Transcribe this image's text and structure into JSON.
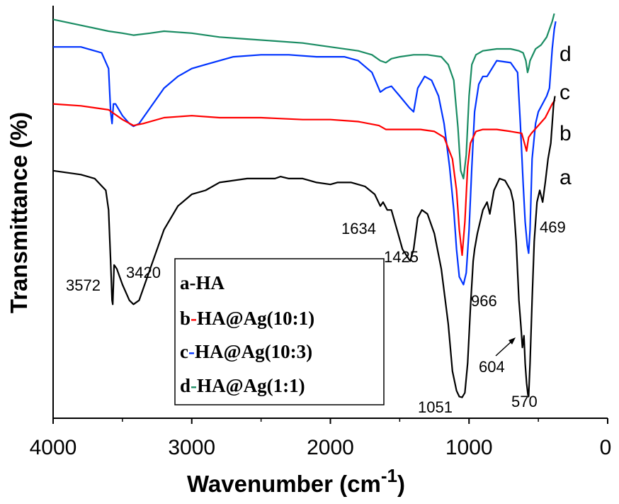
{
  "chart_data": {
    "type": "line",
    "xlabel": "Wavenumber (cm",
    "xlabel_superscript": "-1",
    "xlabel_suffix": ")",
    "ylabel": "Transmittance (%)",
    "xlim": [
      4000,
      0
    ],
    "x_ticks": [
      "4000",
      "3000",
      "2000",
      "1000",
      "0"
    ],
    "x_tick_values": [
      4000,
      3000,
      2000,
      1000,
      0
    ],
    "y_ticks_shown": false,
    "grid": false,
    "legend_position": "bottom-center",
    "series": [
      {
        "name": "a-HA",
        "curve_label": "a",
        "legend_prefix": "a",
        "legend_text": "-HA",
        "color": "#000000",
        "points": [
          [
            4000,
            63
          ],
          [
            3800,
            62
          ],
          [
            3700,
            61
          ],
          [
            3620,
            58
          ],
          [
            3600,
            53
          ],
          [
            3585,
            40
          ],
          [
            3575,
            30
          ],
          [
            3570,
            29
          ],
          [
            3560,
            39
          ],
          [
            3540,
            38
          ],
          [
            3500,
            34
          ],
          [
            3450,
            30
          ],
          [
            3420,
            29
          ],
          [
            3380,
            30
          ],
          [
            3300,
            38
          ],
          [
            3200,
            48
          ],
          [
            3100,
            54
          ],
          [
            3000,
            57
          ],
          [
            2900,
            58
          ],
          [
            2800,
            60
          ],
          [
            2600,
            61
          ],
          [
            2400,
            61
          ],
          [
            2360,
            61.5
          ],
          [
            2300,
            61
          ],
          [
            2200,
            61
          ],
          [
            2100,
            60
          ],
          [
            2000,
            59.5
          ],
          [
            1950,
            60
          ],
          [
            1850,
            60
          ],
          [
            1750,
            59
          ],
          [
            1680,
            57
          ],
          [
            1640,
            54
          ],
          [
            1620,
            55
          ],
          [
            1590,
            53
          ],
          [
            1560,
            53
          ],
          [
            1520,
            48
          ],
          [
            1480,
            43
          ],
          [
            1425,
            40
          ],
          [
            1400,
            43
          ],
          [
            1370,
            51
          ],
          [
            1340,
            53
          ],
          [
            1300,
            52
          ],
          [
            1250,
            47
          ],
          [
            1200,
            38
          ],
          [
            1150,
            24
          ],
          [
            1120,
            12
          ],
          [
            1090,
            7
          ],
          [
            1070,
            5.5
          ],
          [
            1050,
            5.3
          ],
          [
            1030,
            6.5
          ],
          [
            1010,
            14
          ],
          [
            990,
            28
          ],
          [
            970,
            40
          ],
          [
            960,
            43
          ],
          [
            940,
            47
          ],
          [
            900,
            53
          ],
          [
            870,
            55
          ],
          [
            850,
            52
          ],
          [
            820,
            58
          ],
          [
            780,
            61
          ],
          [
            740,
            60.5
          ],
          [
            700,
            58
          ],
          [
            680,
            55
          ],
          [
            660,
            45
          ],
          [
            640,
            30
          ],
          [
            625,
            23
          ],
          [
            615,
            18
          ],
          [
            604,
            21
          ],
          [
            595,
            14
          ],
          [
            585,
            9
          ],
          [
            575,
            6
          ],
          [
            570,
            5.5
          ],
          [
            560,
            14
          ],
          [
            545,
            30
          ],
          [
            530,
            45
          ],
          [
            510,
            55
          ],
          [
            490,
            58
          ],
          [
            469,
            55
          ],
          [
            450,
            60
          ],
          [
            430,
            66
          ],
          [
            410,
            70
          ],
          [
            400,
            75
          ],
          [
            390,
            80
          ],
          [
            380,
            82
          ]
        ]
      },
      {
        "name": "b-HA@Ag(10:1)",
        "curve_label": "b",
        "legend_prefix": "b",
        "legend_text": "-HA@Ag(10:1)",
        "color": "#ff0000",
        "points": [
          [
            4000,
            80
          ],
          [
            3800,
            79.5
          ],
          [
            3600,
            78.5
          ],
          [
            3500,
            76
          ],
          [
            3420,
            74.5
          ],
          [
            3350,
            75
          ],
          [
            3200,
            76.5
          ],
          [
            3000,
            77
          ],
          [
            2800,
            76.5
          ],
          [
            2500,
            76.5
          ],
          [
            2200,
            76
          ],
          [
            2000,
            76
          ],
          [
            1800,
            75.5
          ],
          [
            1650,
            74.5
          ],
          [
            1600,
            73.5
          ],
          [
            1500,
            73.5
          ],
          [
            1350,
            73.5
          ],
          [
            1250,
            73
          ],
          [
            1180,
            71.5
          ],
          [
            1120,
            66
          ],
          [
            1090,
            58
          ],
          [
            1070,
            48
          ],
          [
            1050,
            41.5
          ],
          [
            1030,
            50
          ],
          [
            1010,
            64
          ],
          [
            990,
            70
          ],
          [
            950,
            73
          ],
          [
            900,
            73.5
          ],
          [
            800,
            73.5
          ],
          [
            700,
            73
          ],
          [
            620,
            72.5
          ],
          [
            600,
            70
          ],
          [
            585,
            68
          ],
          [
            570,
            71.5
          ],
          [
            550,
            72.5
          ],
          [
            500,
            74.5
          ],
          [
            450,
            76.5
          ],
          [
            400,
            80
          ],
          [
            380,
            81
          ]
        ]
      },
      {
        "name": "c-HA@Ag(10:3)",
        "curve_label": "c",
        "legend_prefix": "c",
        "legend_text": "-HA@Ag(10:3)",
        "color": "#0033ff",
        "points": [
          [
            4000,
            94.5
          ],
          [
            3800,
            94.5
          ],
          [
            3650,
            93
          ],
          [
            3600,
            89
          ],
          [
            3585,
            78
          ],
          [
            3575,
            75
          ],
          [
            3565,
            80
          ],
          [
            3550,
            80
          ],
          [
            3500,
            77
          ],
          [
            3450,
            75
          ],
          [
            3420,
            74.3
          ],
          [
            3380,
            75
          ],
          [
            3300,
            79
          ],
          [
            3200,
            84
          ],
          [
            3100,
            87
          ],
          [
            3000,
            89
          ],
          [
            2900,
            90
          ],
          [
            2700,
            92
          ],
          [
            2500,
            92.5
          ],
          [
            2300,
            92.5
          ],
          [
            2100,
            92
          ],
          [
            1900,
            92
          ],
          [
            1800,
            91
          ],
          [
            1700,
            88
          ],
          [
            1640,
            83
          ],
          [
            1600,
            84
          ],
          [
            1560,
            84.5
          ],
          [
            1500,
            82
          ],
          [
            1430,
            79
          ],
          [
            1400,
            78
          ],
          [
            1370,
            84
          ],
          [
            1320,
            87
          ],
          [
            1270,
            86
          ],
          [
            1220,
            82
          ],
          [
            1180,
            75
          ],
          [
            1140,
            64
          ],
          [
            1110,
            53
          ],
          [
            1090,
            43
          ],
          [
            1070,
            36
          ],
          [
            1040,
            34
          ],
          [
            1020,
            37
          ],
          [
            1000,
            48
          ],
          [
            980,
            64
          ],
          [
            960,
            78
          ],
          [
            930,
            85
          ],
          [
            900,
            87
          ],
          [
            870,
            87
          ],
          [
            800,
            91
          ],
          [
            700,
            90.5
          ],
          [
            650,
            88
          ],
          [
            630,
            75
          ],
          [
            610,
            60
          ],
          [
            595,
            50
          ],
          [
            580,
            44
          ],
          [
            570,
            42
          ],
          [
            560,
            48
          ],
          [
            545,
            66
          ],
          [
            520,
            75
          ],
          [
            500,
            78
          ],
          [
            470,
            80
          ],
          [
            440,
            82
          ],
          [
            420,
            84
          ],
          [
            400,
            94
          ],
          [
            385,
            99
          ],
          [
            375,
            101
          ]
        ]
      },
      {
        "name": "d-HA@Ag(1:1)",
        "curve_label": "d",
        "legend_prefix": "d",
        "legend_text": "-HA@Ag(1:1)",
        "color": "#1a8c63",
        "points": [
          [
            4000,
            101.5
          ],
          [
            3800,
            100
          ],
          [
            3600,
            98.5
          ],
          [
            3500,
            98
          ],
          [
            3420,
            97.5
          ],
          [
            3300,
            98
          ],
          [
            3200,
            98.5
          ],
          [
            3000,
            98
          ],
          [
            2800,
            97
          ],
          [
            2600,
            96.5
          ],
          [
            2400,
            96
          ],
          [
            2200,
            95.5
          ],
          [
            2000,
            94.5
          ],
          [
            1800,
            93.5
          ],
          [
            1700,
            92.5
          ],
          [
            1640,
            91
          ],
          [
            1600,
            90.5
          ],
          [
            1560,
            91.5
          ],
          [
            1500,
            92
          ],
          [
            1400,
            92.5
          ],
          [
            1300,
            92.5
          ],
          [
            1200,
            92
          ],
          [
            1150,
            90
          ],
          [
            1110,
            86
          ],
          [
            1080,
            74
          ],
          [
            1060,
            63
          ],
          [
            1040,
            61
          ],
          [
            1020,
            67
          ],
          [
            1000,
            82
          ],
          [
            980,
            90
          ],
          [
            950,
            92.5
          ],
          [
            900,
            93.5
          ],
          [
            800,
            94
          ],
          [
            700,
            94
          ],
          [
            640,
            93.5
          ],
          [
            610,
            93
          ],
          [
            590,
            91
          ],
          [
            578,
            88
          ],
          [
            570,
            89
          ],
          [
            560,
            91
          ],
          [
            520,
            94
          ],
          [
            480,
            95
          ],
          [
            440,
            97
          ],
          [
            400,
            101
          ],
          [
            385,
            103
          ]
        ]
      }
    ],
    "peak_annotations": [
      {
        "text": "3572",
        "x": 3572
      },
      {
        "text": "3420",
        "x": 3420
      },
      {
        "text": "1634",
        "x": 1634
      },
      {
        "text": "1425",
        "x": 1425
      },
      {
        "text": "1051",
        "x": 1051
      },
      {
        "text": "966",
        "x": 966
      },
      {
        "text": "604",
        "x": 604
      },
      {
        "text": "570",
        "x": 570
      },
      {
        "text": "469",
        "x": 469
      }
    ]
  }
}
